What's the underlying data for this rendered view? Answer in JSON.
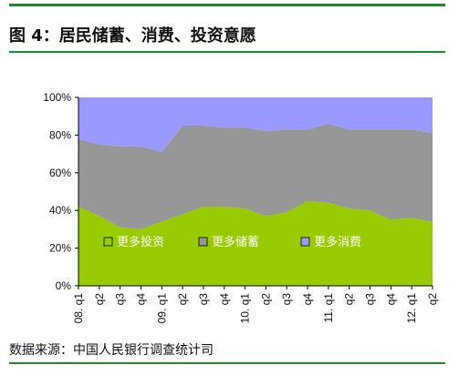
{
  "title": "图 4：居民储蓄、消费、投资意愿",
  "source": "数据来源：中国人民银行调查统计司",
  "colors": {
    "investment": "#99cc00",
    "savings": "#969696",
    "consumption": "#9999ff",
    "rule": "#1f8a2a"
  },
  "chart_data": {
    "type": "area",
    "stacked": true,
    "ylim": [
      0,
      100
    ],
    "yticks": [
      "0%",
      "20%",
      "40%",
      "60%",
      "80%",
      "100%"
    ],
    "x": [
      "08. q1",
      "q2",
      "q3",
      "q4",
      "09. q1",
      "q2",
      "q3",
      "q4",
      "10. q1",
      "q2",
      "q3",
      "q4",
      "11. q1",
      "q2",
      "q3",
      "q4",
      "12. q1",
      "q2"
    ],
    "legend": [
      "更多投资",
      "更多储蓄",
      "更多消费"
    ],
    "legend_position": "inside-bottom",
    "series": [
      {
        "name": "更多投资",
        "values": [
          42,
          37,
          31,
          30,
          34,
          38,
          42,
          42,
          41,
          37,
          39,
          45,
          44,
          41,
          40,
          35,
          36,
          34
        ]
      },
      {
        "name": "更多储蓄",
        "values": [
          36,
          38,
          43,
          44,
          37,
          47,
          43,
          42,
          43,
          45,
          44,
          38,
          42,
          42,
          43,
          48,
          47,
          47
        ]
      },
      {
        "name": "更多消费",
        "values": [
          22,
          25,
          26,
          26,
          29,
          15,
          15,
          16,
          16,
          18,
          17,
          17,
          14,
          17,
          17,
          17,
          17,
          19
        ]
      }
    ]
  }
}
